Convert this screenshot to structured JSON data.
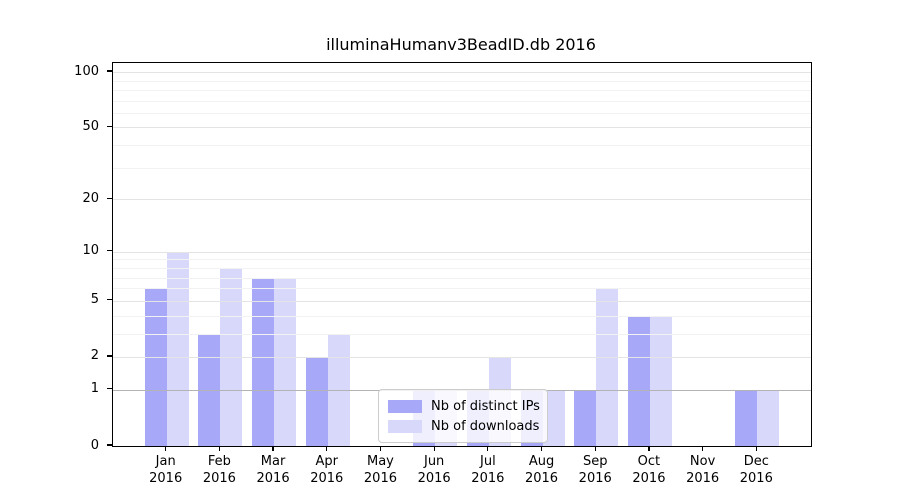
{
  "chart_data": {
    "type": "bar",
    "title": "illuminaHumanv3BeadID.db 2016",
    "year": "2016",
    "categories": [
      "Jan",
      "Feb",
      "Mar",
      "Apr",
      "May",
      "Jun",
      "Jul",
      "Aug",
      "Sep",
      "Oct",
      "Nov",
      "Dec"
    ],
    "series": [
      {
        "name": "Nb of distinct IPs",
        "color": "#a8a8f8",
        "values": [
          6,
          3,
          7,
          2,
          0,
          1,
          1,
          1,
          1,
          4,
          0,
          1
        ]
      },
      {
        "name": "Nb of downloads",
        "color": "#d8d8fa",
        "values": [
          10,
          8,
          7,
          3,
          0,
          1,
          2,
          1,
          6,
          4,
          0,
          1
        ]
      }
    ],
    "scale": "log10(1+y)",
    "ylim": [
      0,
      112
    ],
    "y_major_ticks": [
      100,
      50,
      20,
      10,
      5,
      2,
      1,
      0
    ],
    "y_minor_gridlines": [
      90,
      80,
      70,
      60,
      40,
      30,
      9,
      8,
      7,
      6,
      4,
      3
    ],
    "grid": "horizontal, drawn above bars",
    "legend_position": "inside bottom-center",
    "colors": {
      "grid_minor": "#f2f2f2",
      "grid_major": "#e4e4e4",
      "grid_unit_line": "#b3b3b3",
      "axis": "#000000",
      "background": "#ffffff"
    }
  },
  "legend": {
    "items": [
      {
        "label": "Nb of distinct IPs",
        "color": "#a8a8f8"
      },
      {
        "label": "Nb of downloads",
        "color": "#d8d8fa"
      }
    ]
  }
}
